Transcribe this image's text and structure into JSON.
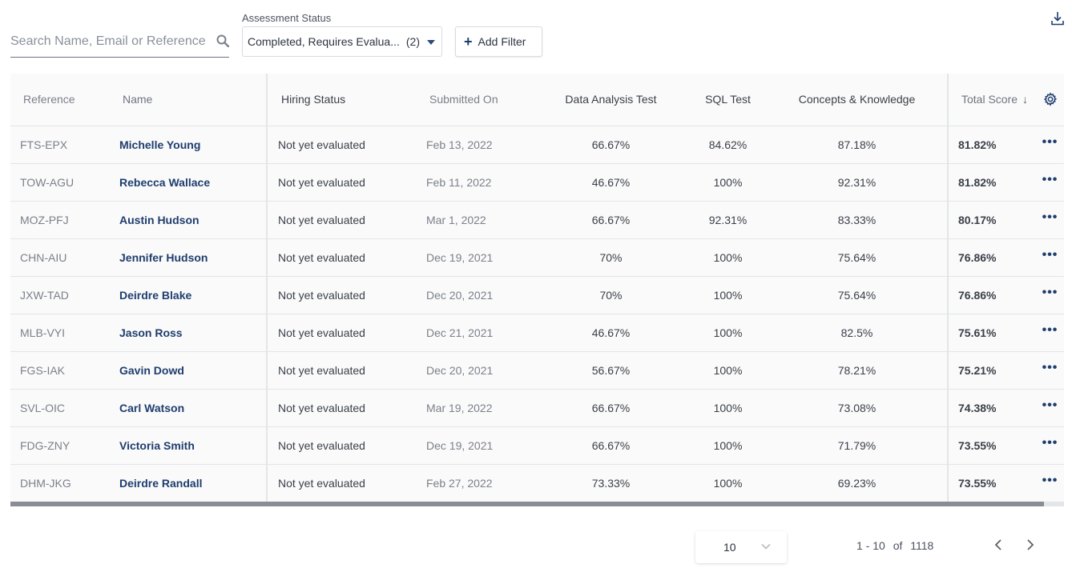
{
  "search": {
    "placeholder": "Search Name, Email or Reference",
    "icon": "search-icon"
  },
  "filters": {
    "assessment_status_label": "Assessment Status",
    "assessment_status_value": "Completed, Requires Evalua...",
    "assessment_status_count": "(2)",
    "add_filter_label": "Add Filter"
  },
  "table": {
    "columns": {
      "reference": "Reference",
      "name": "Name",
      "hiring_status": "Hiring Status",
      "submitted_on": "Submitted On",
      "data_analysis": "Data Analysis Test",
      "sql": "SQL Test",
      "concepts": "Concepts & Knowledge",
      "total": "Total Score"
    },
    "rows": [
      {
        "ref": "FTS-EPX",
        "name": "Michelle Young",
        "hiring": "Not yet evaluated",
        "date": "Feb 13, 2022",
        "data": "66.67%",
        "sql": "84.62%",
        "concepts": "87.18%",
        "total": "81.82%"
      },
      {
        "ref": "TOW-AGU",
        "name": "Rebecca Wallace",
        "hiring": "Not yet evaluated",
        "date": "Feb 11, 2022",
        "data": "46.67%",
        "sql": "100%",
        "concepts": "92.31%",
        "total": "81.82%"
      },
      {
        "ref": "MOZ-PFJ",
        "name": "Austin Hudson",
        "hiring": "Not yet evaluated",
        "date": "Mar 1, 2022",
        "data": "66.67%",
        "sql": "92.31%",
        "concepts": "83.33%",
        "total": "80.17%"
      },
      {
        "ref": "CHN-AIU",
        "name": "Jennifer Hudson",
        "hiring": "Not yet evaluated",
        "date": "Dec 19, 2021",
        "data": "70%",
        "sql": "100%",
        "concepts": "75.64%",
        "total": "76.86%"
      },
      {
        "ref": "JXW-TAD",
        "name": "Deirdre Blake",
        "hiring": "Not yet evaluated",
        "date": "Dec 20, 2021",
        "data": "70%",
        "sql": "100%",
        "concepts": "75.64%",
        "total": "76.86%"
      },
      {
        "ref": "MLB-VYI",
        "name": "Jason Ross",
        "hiring": "Not yet evaluated",
        "date": "Dec 21, 2021",
        "data": "46.67%",
        "sql": "100%",
        "concepts": "82.5%",
        "total": "75.61%"
      },
      {
        "ref": "FGS-IAK",
        "name": "Gavin Dowd",
        "hiring": "Not yet evaluated",
        "date": "Dec 20, 2021",
        "data": "56.67%",
        "sql": "100%",
        "concepts": "78.21%",
        "total": "75.21%"
      },
      {
        "ref": "SVL-OIC",
        "name": "Carl Watson",
        "hiring": "Not yet evaluated",
        "date": "Mar 19, 2022",
        "data": "66.67%",
        "sql": "100%",
        "concepts": "73.08%",
        "total": "74.38%"
      },
      {
        "ref": "FDG-ZNY",
        "name": "Victoria Smith",
        "hiring": "Not yet evaluated",
        "date": "Dec 19, 2021",
        "data": "66.67%",
        "sql": "100%",
        "concepts": "71.79%",
        "total": "73.55%"
      },
      {
        "ref": "DHM-JKG",
        "name": "Deirdre Randall",
        "hiring": "Not yet evaluated",
        "date": "Feb 27, 2022",
        "data": "73.33%",
        "sql": "100%",
        "concepts": "69.23%",
        "total": "73.55%"
      }
    ]
  },
  "pagination": {
    "page_size": "10",
    "range": "1 - 10",
    "of_label": "of",
    "total": "1118"
  },
  "colors": {
    "accent": "#1f3d6e",
    "scrollbar": "#8a8d96"
  }
}
